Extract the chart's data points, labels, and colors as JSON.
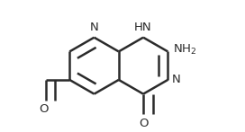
{
  "bg_color": "#ffffff",
  "line_color": "#2b2b2b",
  "line_width": 1.8,
  "dbo": 0.018,
  "figsize": [
    2.72,
    1.47
  ],
  "dpi": 100,
  "font_size": 9.5,
  "xlim": [
    -0.05,
    1.08
  ],
  "ylim": [
    0.1,
    0.95
  ]
}
